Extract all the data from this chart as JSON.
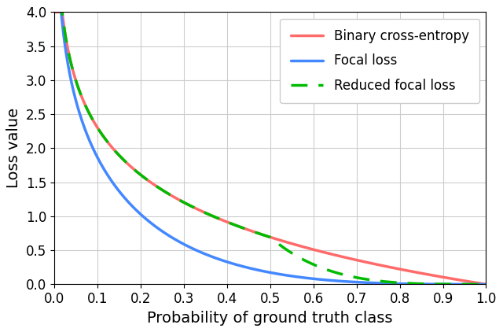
{
  "xlabel": "Probability of ground truth class",
  "ylabel": "Loss value",
  "xlim": [
    0.0,
    1.0
  ],
  "ylim": [
    0.0,
    4.0
  ],
  "bce_color": "#FF6B6B",
  "focal_color": "#4488FF",
  "reduced_focal_color": "#00BB00",
  "focal_gamma": 2.0,
  "reduced_focal_beta": 0.5,
  "reduced_focal_exp": 2.5,
  "legend_labels": [
    "Binary cross-entropy",
    "Focal loss",
    "Reduced focal loss"
  ],
  "line_width": 2.5,
  "xticks": [
    0.0,
    0.1,
    0.2,
    0.3,
    0.4,
    0.5,
    0.6,
    0.7,
    0.8,
    0.9,
    1.0
  ],
  "yticks": [
    0.0,
    0.5,
    1.0,
    1.5,
    2.0,
    2.5,
    3.0,
    3.5,
    4.0
  ],
  "figsize": [
    6.4,
    4.22
  ],
  "dpi": 100,
  "xlabel_fontsize": 14,
  "ylabel_fontsize": 14,
  "tick_fontsize": 12,
  "legend_fontsize": 12
}
